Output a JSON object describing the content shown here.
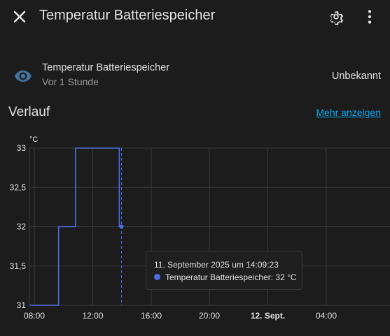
{
  "header": {
    "title": "Temperatur Batteriespeicher"
  },
  "entity": {
    "name": "Temperatur Batteriespeicher",
    "last_changed": "Vor 1 Stunde",
    "state": "Unbekannt"
  },
  "history": {
    "title": "Verlauf",
    "more_link": "Mehr anzeigen"
  },
  "colors": {
    "background": "#1c1c1c",
    "accent": "#03a9f4",
    "series": "#4c6ee0",
    "icon": "#44739e"
  },
  "chart_data": {
    "type": "line",
    "step": true,
    "unit_label": "°C",
    "ylim": [
      31,
      33
    ],
    "y_ticks": [
      "31",
      "31,5",
      "32",
      "32,5",
      "33"
    ],
    "x_ticks": [
      {
        "label": "08:00",
        "bold": false
      },
      {
        "label": "12:00",
        "bold": false
      },
      {
        "label": "16:00",
        "bold": false
      },
      {
        "label": "20:00",
        "bold": false
      },
      {
        "label": "12. Sept.",
        "bold": true
      },
      {
        "label": "04:00",
        "bold": false
      }
    ],
    "grid": true,
    "series": [
      {
        "points": [
          {
            "t": "07:50",
            "v": 31
          },
          {
            "t": "09:50",
            "v": 32
          },
          {
            "t": "11:00",
            "v": 33
          },
          {
            "t": "14:00",
            "v": 32
          },
          {
            "t": "14:09",
            "v": 32
          }
        ]
      }
    ],
    "tooltip": {
      "time": "11. September 2025 um 14:09:23",
      "value": "Temperatur Batteriespeicher: 32 °C"
    }
  }
}
